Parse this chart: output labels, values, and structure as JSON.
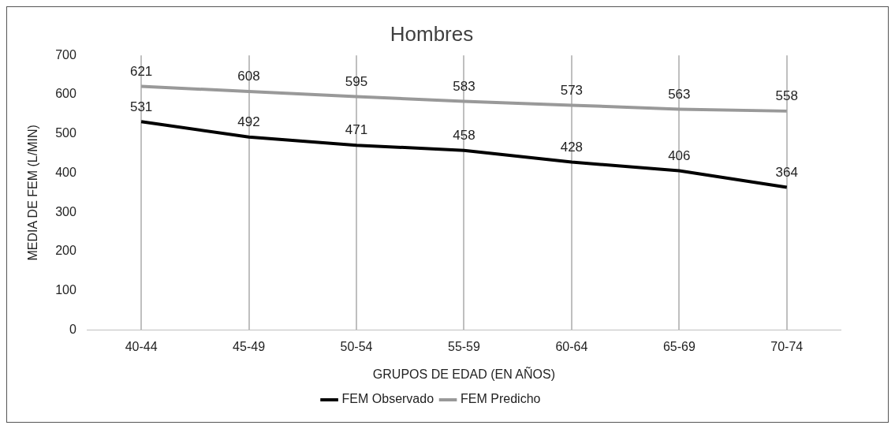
{
  "chart_data": {
    "type": "line",
    "title": "Hombres",
    "xlabel": "GRUPOS DE EDAD (EN AÑOS)",
    "ylabel": "MEDIA DE FEM (L/MIN)",
    "categories": [
      "40-44",
      "45-49",
      "50-54",
      "55-59",
      "60-64",
      "65-69",
      "70-74"
    ],
    "series": [
      {
        "name": "FEM Observado",
        "color": "#000000",
        "values": [
          531,
          492,
          471,
          458,
          428,
          406,
          364
        ]
      },
      {
        "name": "FEM Predicho",
        "color": "#999999",
        "values": [
          621,
          608,
          595,
          583,
          573,
          563,
          558
        ]
      }
    ],
    "ylim": [
      0,
      700
    ],
    "yticks": [
      0,
      100,
      200,
      300,
      400,
      500,
      600,
      700
    ],
    "grid": "x",
    "legend": "bottom",
    "data_labels": true,
    "marker": "none",
    "line_style": "solid"
  }
}
